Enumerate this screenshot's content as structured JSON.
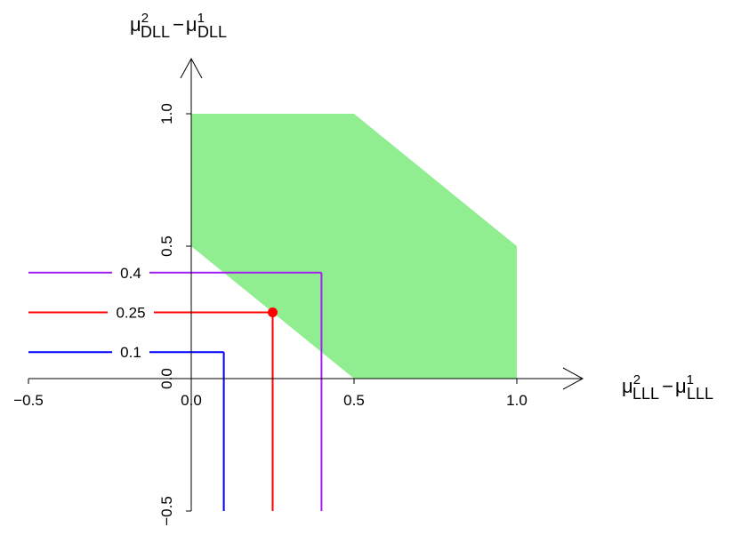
{
  "chart_data": {
    "type": "area",
    "x_axis_label": {
      "base": "μ",
      "sup2": "2",
      "sub": "LLL",
      "minus": "−",
      "sup1": "1"
    },
    "y_axis_label": {
      "base": "μ",
      "sup2": "2",
      "sub": "DLL",
      "minus": "−",
      "sup1": "1"
    },
    "xlim": [
      -0.5,
      1.0
    ],
    "ylim": [
      -0.5,
      1.0
    ],
    "x_ticks": [
      "−0.5",
      "0.0",
      "0.5",
      "1.0"
    ],
    "y_ticks": [
      "−0.5",
      "0.0",
      "0.5",
      "1.0"
    ],
    "x_tick_values": [
      -0.5,
      0.0,
      0.5,
      1.0
    ],
    "y_tick_values": [
      -0.5,
      0.0,
      0.5,
      1.0
    ],
    "region": {
      "color": "#90EE90",
      "vertices": [
        [
          0,
          0.5
        ],
        [
          0,
          1.0
        ],
        [
          0.5,
          1.0
        ],
        [
          1.0,
          0.5
        ],
        [
          1.0,
          0
        ],
        [
          0.5,
          0
        ]
      ]
    },
    "levels": [
      {
        "label": "0.4",
        "value": 0.4,
        "color": "#A020F0"
      },
      {
        "label": "0.25",
        "value": 0.25,
        "color": "#FF0000"
      },
      {
        "label": "0.1",
        "value": 0.1,
        "color": "#0000FF"
      }
    ],
    "point": {
      "x": 0.25,
      "y": 0.25,
      "color": "#FF0000"
    }
  }
}
